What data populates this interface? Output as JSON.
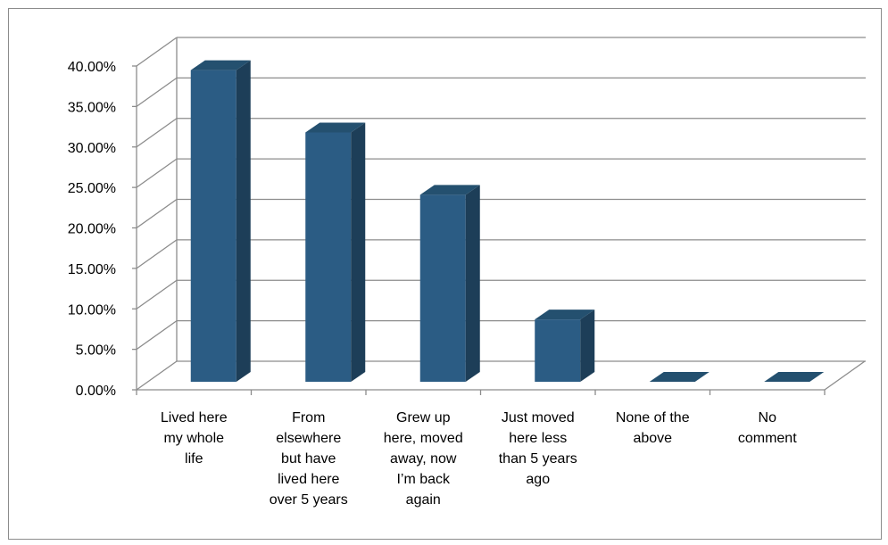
{
  "chart_data": {
    "type": "bar",
    "style": "3d-column",
    "title": "",
    "xlabel": "",
    "ylabel": "",
    "ylim": [
      0,
      40
    ],
    "y_tick_step": 5,
    "y_tick_labels": [
      "0.00%",
      "5.00%",
      "10.00%",
      "15.00%",
      "20.00%",
      "25.00%",
      "30.00%",
      "35.00%",
      "40.00%"
    ],
    "grid": true,
    "legend": "none",
    "categories": [
      [
        "Lived here",
        "my whole",
        "life"
      ],
      [
        "From",
        "elsewhere",
        "but have",
        "lived here",
        "over 5 years"
      ],
      [
        "Grew up",
        "here, moved",
        "away, now",
        "I’m back",
        "again"
      ],
      [
        "Just moved",
        "here less",
        "than 5 years",
        "ago"
      ],
      [
        "None of the",
        "above"
      ],
      [
        "No",
        "comment"
      ]
    ],
    "values": [
      38.5,
      30.8,
      23.1,
      7.7,
      0,
      0
    ],
    "colors": {
      "bar_front": "#2b5c84",
      "bar_side": "#1d3e58",
      "bar_top": "#24506f",
      "gridline": "#8c8c8c",
      "axis": "#8c8c8c"
    }
  }
}
